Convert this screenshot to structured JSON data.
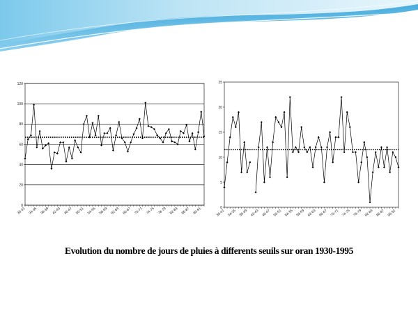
{
  "slide": {
    "caption": "Evolution du nombre de jours de  pluies  à differents seuils  sur oran   1930-1995"
  },
  "colors": {
    "banner_light": "#e3f3fb",
    "banner_mid": "#9fd6ef",
    "banner_dark": "#2b9fd8",
    "grid": "#000000",
    "series": "#000000"
  },
  "chart_data": [
    {
      "type": "line",
      "title": "",
      "x_tick_labels": [
        "30-31",
        "34-35",
        "38-39",
        "42-43",
        "46-47",
        "50-51",
        "54-55",
        "58-59",
        "62-63",
        "66-67",
        "70-71",
        "74-75",
        "78-79",
        "82-83",
        "86-87",
        "90-91"
      ],
      "x_start_year": 1930,
      "ylim": [
        0,
        120
      ],
      "y_ticks": [
        0,
        20,
        40,
        60,
        80,
        100,
        120
      ],
      "grid": "horizontal",
      "series": [
        {
          "style": "solid-line-diamond-markers",
          "values": [
            46,
            65,
            69,
            99,
            57,
            73,
            56,
            59,
            61,
            36,
            52,
            51,
            62,
            62,
            43,
            57,
            46,
            64,
            57,
            52,
            80,
            88,
            67,
            81,
            69,
            88,
            59,
            71,
            71,
            76,
            54,
            69,
            82,
            66,
            62,
            53,
            62,
            70,
            76,
            85,
            66,
            101,
            78,
            77,
            75,
            69,
            66,
            62,
            71,
            75,
            63,
            62,
            60,
            73,
            71,
            79,
            63,
            71,
            55,
            72,
            92,
            68
          ]
        },
        {
          "style": "dotted-mean-line",
          "values": [
            67
          ]
        }
      ]
    },
    {
      "type": "line",
      "title": "",
      "x_tick_labels": [
        "30-31",
        "34-35",
        "38-39",
        "42-43",
        "46-47",
        "50-51",
        "54-55",
        "58-59",
        "62-63",
        "66-67",
        "70-71",
        "74-75",
        "78-79",
        "82-83",
        "86-87",
        "90-91"
      ],
      "x_start_year": 1930,
      "ylim": [
        0,
        25
      ],
      "y_ticks": [
        0,
        5,
        10,
        15,
        20,
        25
      ],
      "grid": "none",
      "series": [
        {
          "style": "solid-line-diamond-markers",
          "values": [
            4,
            9,
            14,
            18,
            16,
            19,
            7,
            13,
            7,
            9,
            null,
            3,
            12,
            17,
            5,
            12,
            6,
            13,
            18,
            17,
            16,
            19,
            6,
            22,
            11,
            12,
            11,
            16,
            12,
            11,
            12,
            8,
            12,
            14,
            12,
            5,
            12,
            15,
            9,
            14,
            14,
            22,
            11,
            19,
            16,
            11,
            11,
            5,
            9,
            13,
            10,
            1,
            7,
            11,
            8,
            12,
            8,
            12,
            7,
            11,
            10,
            8
          ]
        },
        {
          "style": "dotted-mean-line",
          "values": [
            11.5
          ]
        }
      ]
    }
  ]
}
